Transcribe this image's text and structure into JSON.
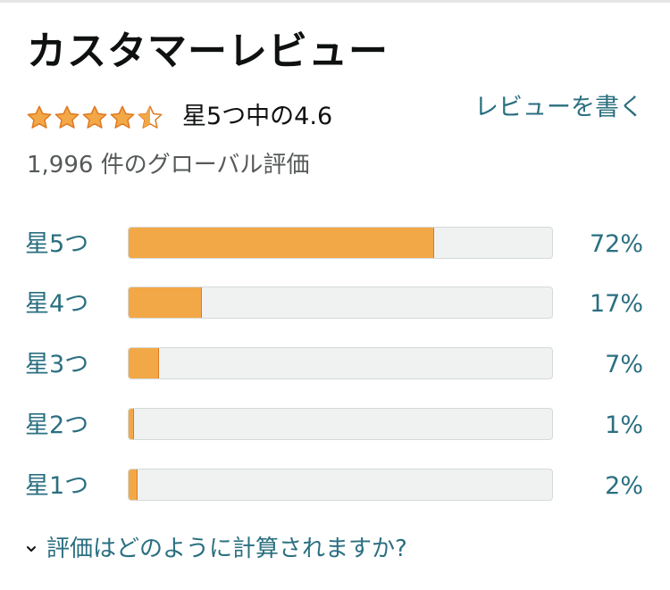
{
  "header": {
    "title": "カスタマーレビュー"
  },
  "summary": {
    "stars_value": 4.5,
    "rating_text": "星5つ中の4.6",
    "write_review_label": "レビューを書く",
    "global_ratings_text": "1,996 件のグローバル評価"
  },
  "histogram": [
    {
      "label": "星5つ",
      "percent_text": "72%",
      "percent": 72
    },
    {
      "label": "星4つ",
      "percent_text": "17%",
      "percent": 17
    },
    {
      "label": "星3つ",
      "percent_text": "7%",
      "percent": 7
    },
    {
      "label": "星2つ",
      "percent_text": "1%",
      "percent": 1
    },
    {
      "label": "星1つ",
      "percent_text": "2%",
      "percent": 2
    }
  ],
  "footer": {
    "how_calculated_label": "評価はどのように計算されますか?"
  },
  "colors": {
    "link": "#2a6f80",
    "star_fill": "#f3a847",
    "star_stroke": "#de7921",
    "bar_track": "#f0f2f2"
  }
}
